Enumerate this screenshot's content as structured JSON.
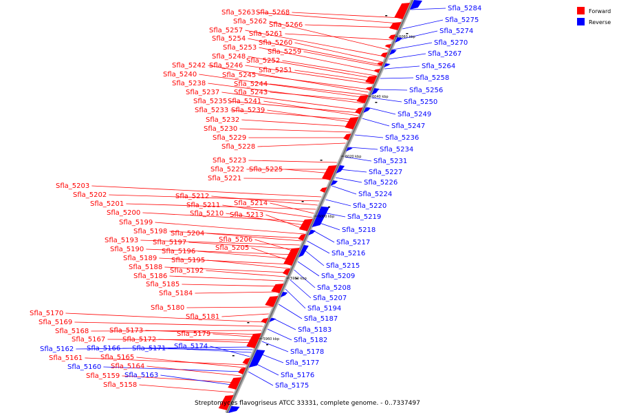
{
  "caption": "Streptomyces flavogriseus ATCC 33331, complete genome. - 0..7337497",
  "legend": [
    {
      "label": "Forward",
      "color": "#ff0000"
    },
    {
      "label": "Reverse",
      "color": "#0000ff"
    }
  ],
  "ticks": [
    "5960 kbp",
    "5980 kbp",
    "6000 kbp",
    "6020 kbp",
    "6040 kbp",
    "6060 kbp"
  ],
  "labels": [
    {
      "t": "Sfla_5263",
      "s": "f"
    },
    {
      "t": "Sfla_5268",
      "s": "f"
    },
    {
      "t": "Sfla_5262",
      "s": "f"
    },
    {
      "t": "Sfla_5266",
      "s": "f"
    },
    {
      "t": "Sfla_5257",
      "s": "f"
    },
    {
      "t": "Sfla_5261",
      "s": "f"
    },
    {
      "t": "Sfla_5254",
      "s": "f"
    },
    {
      "t": "Sfla_5260",
      "s": "f"
    },
    {
      "t": "Sfla_5253",
      "s": "f"
    },
    {
      "t": "Sfla_5259",
      "s": "f"
    },
    {
      "t": "Sfla_5248",
      "s": "f"
    },
    {
      "t": "Sfla_5252",
      "s": "f"
    },
    {
      "t": "Sfla_5246",
      "s": "f"
    },
    {
      "t": "Sfla_5251",
      "s": "f"
    },
    {
      "t": "Sfla_5242",
      "s": "f"
    },
    {
      "t": "Sfla_5245",
      "s": "f"
    },
    {
      "t": "Sfla_5240",
      "s": "f"
    },
    {
      "t": "Sfla_5244",
      "s": "f"
    },
    {
      "t": "Sfla_5238",
      "s": "f"
    },
    {
      "t": "Sfla_5243",
      "s": "f"
    },
    {
      "t": "Sfla_5237",
      "s": "f"
    },
    {
      "t": "Sfla_5235",
      "s": "f"
    },
    {
      "t": "Sfla_5241",
      "s": "f"
    },
    {
      "t": "Sfla_5233",
      "s": "f"
    },
    {
      "t": "Sfla_5239",
      "s": "f"
    },
    {
      "t": "Sfla_5232",
      "s": "f"
    },
    {
      "t": "Sfla_5230",
      "s": "f"
    },
    {
      "t": "Sfla_5229",
      "s": "f"
    },
    {
      "t": "Sfla_5228",
      "s": "f"
    },
    {
      "t": "Sfla_5223",
      "s": "f"
    },
    {
      "t": "Sfla_5222",
      "s": "f"
    },
    {
      "t": "Sfla_5225",
      "s": "f"
    },
    {
      "t": "Sfla_5221",
      "s": "f"
    },
    {
      "t": "Sfla_5203",
      "s": "f"
    },
    {
      "t": "Sfla_5202",
      "s": "f"
    },
    {
      "t": "Sfla_5212",
      "s": "f"
    },
    {
      "t": "Sfla_5201",
      "s": "f"
    },
    {
      "t": "Sfla_5214",
      "s": "f"
    },
    {
      "t": "Sfla_5211",
      "s": "f"
    },
    {
      "t": "Sfla_5200",
      "s": "f"
    },
    {
      "t": "Sfla_5210",
      "s": "f"
    },
    {
      "t": "Sfla_5213",
      "s": "f"
    },
    {
      "t": "Sfla_5199",
      "s": "f"
    },
    {
      "t": "Sfla_5198",
      "s": "f"
    },
    {
      "t": "Sfla_5204",
      "s": "f"
    },
    {
      "t": "Sfla_5193",
      "s": "f"
    },
    {
      "t": "Sfla_5197",
      "s": "f"
    },
    {
      "t": "Sfla_5206",
      "s": "f"
    },
    {
      "t": "Sfla_5190",
      "s": "f"
    },
    {
      "t": "Sfla_5196",
      "s": "f"
    },
    {
      "t": "Sfla_5205",
      "s": "f"
    },
    {
      "t": "Sfla_5189",
      "s": "f"
    },
    {
      "t": "Sfla_5195",
      "s": "f"
    },
    {
      "t": "Sfla_5188",
      "s": "f"
    },
    {
      "t": "Sfla_5192",
      "s": "f"
    },
    {
      "t": "Sfla_5186",
      "s": "f"
    },
    {
      "t": "Sfla_5185",
      "s": "f"
    },
    {
      "t": "Sfla_5184",
      "s": "f"
    },
    {
      "t": "Sfla_5180",
      "s": "f"
    },
    {
      "t": "Sfla_5170",
      "s": "f"
    },
    {
      "t": "Sfla_5181",
      "s": "f"
    },
    {
      "t": "Sfla_5169",
      "s": "f"
    },
    {
      "t": "Sfla_5168",
      "s": "f"
    },
    {
      "t": "Sfla_5173",
      "s": "f"
    },
    {
      "t": "Sfla_5179",
      "s": "f"
    },
    {
      "t": "Sfla_5167",
      "s": "f"
    },
    {
      "t": "Sfla_5172",
      "s": "f"
    },
    {
      "t": "Sfla_5162",
      "s": "r"
    },
    {
      "t": "Sfla_5166",
      "s": "r"
    },
    {
      "t": "Sfla_5171",
      "s": "r"
    },
    {
      "t": "Sfla_5174",
      "s": "r"
    },
    {
      "t": "Sfla_5161",
      "s": "f"
    },
    {
      "t": "Sfla_5165",
      "s": "f"
    },
    {
      "t": "Sfla_5160",
      "s": "r"
    },
    {
      "t": "Sfla_5164",
      "s": "f"
    },
    {
      "t": "Sfla_5159",
      "s": "f"
    },
    {
      "t": "Sfla_5163",
      "s": "r"
    },
    {
      "t": "Sfla_5158",
      "s": "f"
    },
    {
      "t": "Sfla_5284",
      "s": "r"
    },
    {
      "t": "Sfla_5275",
      "s": "r"
    },
    {
      "t": "Sfla_5274",
      "s": "r"
    },
    {
      "t": "Sfla_5270",
      "s": "r"
    },
    {
      "t": "Sfla_5267",
      "s": "r"
    },
    {
      "t": "Sfla_5264",
      "s": "r"
    },
    {
      "t": "Sfla_5258",
      "s": "r"
    },
    {
      "t": "Sfla_5256",
      "s": "r"
    },
    {
      "t": "Sfla_5250",
      "s": "r"
    },
    {
      "t": "Sfla_5249",
      "s": "r"
    },
    {
      "t": "Sfla_5247",
      "s": "r"
    },
    {
      "t": "Sfla_5236",
      "s": "r"
    },
    {
      "t": "Sfla_5234",
      "s": "r"
    },
    {
      "t": "Sfla_5231",
      "s": "r"
    },
    {
      "t": "Sfla_5227",
      "s": "r"
    },
    {
      "t": "Sfla_5226",
      "s": "r"
    },
    {
      "t": "Sfla_5224",
      "s": "r"
    },
    {
      "t": "Sfla_5220",
      "s": "r"
    },
    {
      "t": "Sfla_5219",
      "s": "r"
    },
    {
      "t": "Sfla_5218",
      "s": "r"
    },
    {
      "t": "Sfla_5217",
      "s": "r"
    },
    {
      "t": "Sfla_5216",
      "s": "r"
    },
    {
      "t": "Sfla_5215",
      "s": "r"
    },
    {
      "t": "Sfla_5209",
      "s": "r"
    },
    {
      "t": "Sfla_5208",
      "s": "r"
    },
    {
      "t": "Sfla_5207",
      "s": "r"
    },
    {
      "t": "Sfla_5194",
      "s": "r"
    },
    {
      "t": "Sfla_5187",
      "s": "r"
    },
    {
      "t": "Sfla_5183",
      "s": "r"
    },
    {
      "t": "Sfla_5182",
      "s": "r"
    },
    {
      "t": "Sfla_5178",
      "s": "r"
    },
    {
      "t": "Sfla_5177",
      "s": "r"
    },
    {
      "t": "Sfla_5176",
      "s": "r"
    },
    {
      "t": "Sfla_5175",
      "s": "r"
    }
  ]
}
